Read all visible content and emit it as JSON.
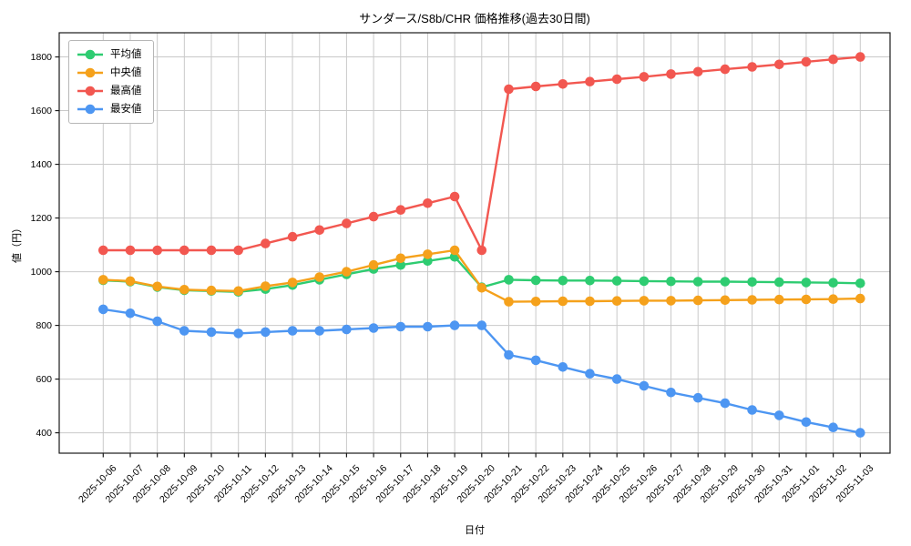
{
  "chart_data": {
    "type": "line",
    "title": "サンダース/S8b/CHR 価格推移(過去30日間)",
    "xlabel": "日付",
    "ylabel": "値（円）",
    "ylim": [
      324,
      1890
    ],
    "yticks": [
      400,
      600,
      800,
      1000,
      1200,
      1400,
      1600,
      1800
    ],
    "grid": true,
    "legend_position": "upper-left",
    "categories": [
      "2025-10-06",
      "2025-10-07",
      "2025-10-08",
      "2025-10-09",
      "2025-10-10",
      "2025-10-11",
      "2025-10-12",
      "2025-10-13",
      "2025-10-14",
      "2025-10-15",
      "2025-10-16",
      "2025-10-17",
      "2025-10-18",
      "2025-10-19",
      "2025-10-20",
      "2025-10-21",
      "2025-10-22",
      "2025-10-23",
      "2025-10-24",
      "2025-10-25",
      "2025-10-26",
      "2025-10-27",
      "2025-10-28",
      "2025-10-29",
      "2025-10-30",
      "2025-10-31",
      "2025-11-01",
      "2025-11-02",
      "2025-11-03"
    ],
    "series": [
      {
        "name": "平均値",
        "color": "#2ecc71",
        "values": [
          968,
          963,
          943,
          931,
          928,
          925,
          935,
          950,
          970,
          990,
          1010,
          1025,
          1040,
          1055,
          942,
          970,
          968,
          967,
          967,
          966,
          965,
          964,
          963,
          963,
          962,
          961,
          960,
          959,
          957
        ]
      },
      {
        "name": "中央値",
        "color": "#f5a11b",
        "values": [
          970,
          965,
          945,
          933,
          930,
          928,
          946,
          960,
          980,
          1000,
          1025,
          1050,
          1065,
          1080,
          940,
          888,
          889,
          890,
          890,
          891,
          892,
          892,
          893,
          894,
          895,
          896,
          897,
          898,
          900
        ]
      },
      {
        "name": "最高値",
        "color": "#f25750",
        "values": [
          1080,
          1080,
          1080,
          1080,
          1080,
          1080,
          1105,
          1130,
          1155,
          1180,
          1205,
          1230,
          1255,
          1280,
          1080,
          1680,
          1690,
          1699,
          1708,
          1717,
          1726,
          1736,
          1745,
          1754,
          1763,
          1772,
          1782,
          1791,
          1800
        ]
      },
      {
        "name": "最安値",
        "color": "#4d96f2",
        "values": [
          860,
          845,
          815,
          780,
          775,
          770,
          775,
          780,
          780,
          785,
          790,
          795,
          795,
          800,
          800,
          690,
          670,
          645,
          620,
          600,
          575,
          550,
          530,
          510,
          485,
          465,
          440,
          420,
          400
        ]
      }
    ]
  },
  "colors": {
    "background": "#ffffff",
    "grid": "#c9c9c9",
    "spine": "#1a1a1a",
    "text": "#000000"
  }
}
